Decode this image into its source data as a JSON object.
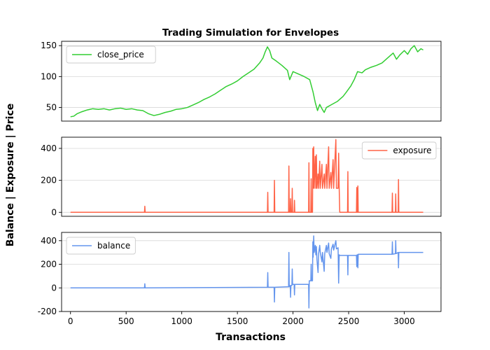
{
  "chart_data": {
    "type": "line",
    "title": "Trading Simulation for Envelopes",
    "xlabel": "Transactions",
    "ylabel": "Balance | Exposure | Price",
    "xlim": [
      -80,
      3330
    ],
    "xticks": [
      0,
      500,
      1000,
      1500,
      2000,
      2500,
      3000
    ],
    "panels": [
      {
        "id": "price",
        "ylim": [
          28,
          157
        ],
        "yticks": [
          50,
          100,
          150
        ],
        "legend_position": "upper-left",
        "series": [
          {
            "name": "close_price",
            "color": "#32cd32",
            "points": [
              [
                0,
                35
              ],
              [
                30,
                36
              ],
              [
                60,
                40
              ],
              [
                100,
                43
              ],
              [
                150,
                46
              ],
              [
                200,
                48
              ],
              [
                250,
                47
              ],
              [
                300,
                48
              ],
              [
                350,
                46
              ],
              [
                400,
                48
              ],
              [
                450,
                49
              ],
              [
                500,
                47
              ],
              [
                550,
                48
              ],
              [
                600,
                46
              ],
              [
                650,
                45
              ],
              [
                700,
                40
              ],
              [
                750,
                37
              ],
              [
                800,
                39
              ],
              [
                850,
                42
              ],
              [
                900,
                44
              ],
              [
                950,
                47
              ],
              [
                1000,
                48
              ],
              [
                1050,
                50
              ],
              [
                1100,
                54
              ],
              [
                1150,
                58
              ],
              [
                1200,
                63
              ],
              [
                1250,
                67
              ],
              [
                1300,
                72
              ],
              [
                1350,
                78
              ],
              [
                1400,
                84
              ],
              [
                1450,
                88
              ],
              [
                1500,
                93
              ],
              [
                1550,
                100
              ],
              [
                1600,
                106
              ],
              [
                1650,
                112
              ],
              [
                1700,
                122
              ],
              [
                1730,
                130
              ],
              [
                1750,
                140
              ],
              [
                1770,
                148
              ],
              [
                1790,
                142
              ],
              [
                1810,
                130
              ],
              [
                1850,
                125
              ],
              [
                1900,
                118
              ],
              [
                1950,
                110
              ],
              [
                1970,
                95
              ],
              [
                2000,
                108
              ],
              [
                2050,
                104
              ],
              [
                2100,
                100
              ],
              [
                2150,
                95
              ],
              [
                2180,
                75
              ],
              [
                2200,
                58
              ],
              [
                2220,
                45
              ],
              [
                2240,
                55
              ],
              [
                2260,
                48
              ],
              [
                2280,
                42
              ],
              [
                2300,
                50
              ],
              [
                2350,
                55
              ],
              [
                2400,
                60
              ],
              [
                2450,
                68
              ],
              [
                2480,
                75
              ],
              [
                2520,
                85
              ],
              [
                2550,
                95
              ],
              [
                2580,
                108
              ],
              [
                2620,
                106
              ],
              [
                2650,
                111
              ],
              [
                2700,
                115
              ],
              [
                2750,
                118
              ],
              [
                2800,
                122
              ],
              [
                2850,
                130
              ],
              [
                2900,
                138
              ],
              [
                2930,
                128
              ],
              [
                2960,
                135
              ],
              [
                3000,
                142
              ],
              [
                3030,
                136
              ],
              [
                3060,
                145
              ],
              [
                3090,
                150
              ],
              [
                3120,
                140
              ],
              [
                3150,
                145
              ],
              [
                3170,
                143
              ]
            ]
          }
        ]
      },
      {
        "id": "exposure",
        "ylim": [
          -25,
          470
        ],
        "yticks": [
          0,
          200,
          400
        ],
        "legend_position": "upper-right",
        "series": [
          {
            "name": "exposure",
            "color": "#ff6347",
            "points": [
              [
                0,
                0
              ],
              [
                665,
                0
              ],
              [
                668,
                38
              ],
              [
                671,
                0
              ],
              [
                1770,
                0
              ],
              [
                1773,
                125
              ],
              [
                1776,
                0
              ],
              [
                1830,
                0
              ],
              [
                1833,
                200
              ],
              [
                1836,
                0
              ],
              [
                1960,
                0
              ],
              [
                1963,
                290
              ],
              [
                1966,
                0
              ],
              [
                1975,
                0
              ],
              [
                1978,
                85
              ],
              [
                1981,
                0
              ],
              [
                1990,
                0
              ],
              [
                1993,
                150
              ],
              [
                1996,
                0
              ],
              [
                2010,
                0
              ],
              [
                2013,
                75
              ],
              [
                2016,
                0
              ],
              [
                2140,
                0
              ],
              [
                2143,
                310
              ],
              [
                2146,
                0
              ],
              [
                2160,
                0
              ],
              [
                2163,
                210
              ],
              [
                2166,
                0
              ],
              [
                2175,
                0
              ],
              [
                2178,
                400
              ],
              [
                2181,
                150
              ],
              [
                2186,
                410
              ],
              [
                2190,
                150
              ],
              [
                2200,
                350
              ],
              [
                2205,
                150
              ],
              [
                2210,
                360
              ],
              [
                2215,
                150
              ],
              [
                2225,
                240
              ],
              [
                2230,
                150
              ],
              [
                2240,
                320
              ],
              [
                2245,
                150
              ],
              [
                2260,
                300
              ],
              [
                2265,
                150
              ],
              [
                2280,
                240
              ],
              [
                2285,
                150
              ],
              [
                2300,
                300
              ],
              [
                2305,
                150
              ],
              [
                2320,
                410
              ],
              [
                2325,
                150
              ],
              [
                2340,
                250
              ],
              [
                2345,
                150
              ],
              [
                2360,
                330
              ],
              [
                2365,
                150
              ],
              [
                2385,
                455
              ],
              [
                2390,
                150
              ],
              [
                2405,
                150
              ],
              [
                2410,
                370
              ],
              [
                2415,
                150
              ],
              [
                2420,
                0
              ],
              [
                2490,
                0
              ],
              [
                2493,
                255
              ],
              [
                2496,
                0
              ],
              [
                2570,
                0
              ],
              [
                2573,
                155
              ],
              [
                2576,
                0
              ],
              [
                2580,
                0
              ],
              [
                2583,
                165
              ],
              [
                2586,
                0
              ],
              [
                2890,
                0
              ],
              [
                2893,
                120
              ],
              [
                2896,
                0
              ],
              [
                2920,
                0
              ],
              [
                2923,
                115
              ],
              [
                2926,
                0
              ],
              [
                2945,
                0
              ],
              [
                2948,
                205
              ],
              [
                2951,
                0
              ],
              [
                3170,
                0
              ]
            ]
          }
        ]
      },
      {
        "id": "balance",
        "ylim": [
          -200,
          470
        ],
        "yticks": [
          -200,
          0,
          200,
          400
        ],
        "legend_position": "upper-left",
        "series": [
          {
            "name": "balance",
            "color": "#6495ed",
            "points": [
              [
                0,
                0
              ],
              [
                665,
                0
              ],
              [
                668,
                35
              ],
              [
                671,
                0
              ],
              [
                1770,
                5
              ],
              [
                1773,
                130
              ],
              [
                1776,
                5
              ],
              [
                1830,
                5
              ],
              [
                1833,
                -120
              ],
              [
                1836,
                5
              ],
              [
                1960,
                10
              ],
              [
                1963,
                300
              ],
              [
                1966,
                10
              ],
              [
                1975,
                20
              ],
              [
                1978,
                -80
              ],
              [
                1981,
                20
              ],
              [
                1990,
                20
              ],
              [
                1993,
                160
              ],
              [
                1996,
                30
              ],
              [
                2010,
                30
              ],
              [
                2013,
                -60
              ],
              [
                2016,
                30
              ],
              [
                2140,
                30
              ],
              [
                2143,
                -170
              ],
              [
                2146,
                60
              ],
              [
                2160,
                60
              ],
              [
                2163,
                200
              ],
              [
                2166,
                60
              ],
              [
                2175,
                60
              ],
              [
                2178,
                390
              ],
              [
                2181,
                260
              ],
              [
                2186,
                440
              ],
              [
                2190,
                300
              ],
              [
                2200,
                360
              ],
              [
                2205,
                280
              ],
              [
                2210,
                350
              ],
              [
                2215,
                240
              ],
              [
                2225,
                130
              ],
              [
                2230,
                290
              ],
              [
                2240,
                360
              ],
              [
                2245,
                300
              ],
              [
                2260,
                220
              ],
              [
                2265,
                300
              ],
              [
                2280,
                140
              ],
              [
                2285,
                290
              ],
              [
                2300,
                360
              ],
              [
                2305,
                300
              ],
              [
                2320,
                380
              ],
              [
                2325,
                290
              ],
              [
                2340,
                250
              ],
              [
                2345,
                330
              ],
              [
                2360,
                370
              ],
              [
                2365,
                320
              ],
              [
                2385,
                400
              ],
              [
                2390,
                330
              ],
              [
                2405,
                340
              ],
              [
                2410,
                40
              ],
              [
                2415,
                280
              ],
              [
                2420,
                275
              ],
              [
                2490,
                275
              ],
              [
                2493,
                110
              ],
              [
                2496,
                275
              ],
              [
                2570,
                275
              ],
              [
                2573,
                180
              ],
              [
                2576,
                280
              ],
              [
                2580,
                280
              ],
              [
                2583,
                170
              ],
              [
                2586,
                285
              ],
              [
                2890,
                285
              ],
              [
                2893,
                390
              ],
              [
                2896,
                285
              ],
              [
                2920,
                290
              ],
              [
                2923,
                400
              ],
              [
                2926,
                290
              ],
              [
                2945,
                300
              ],
              [
                2948,
                170
              ],
              [
                2951,
                300
              ],
              [
                3170,
                300
              ]
            ]
          }
        ]
      }
    ]
  }
}
